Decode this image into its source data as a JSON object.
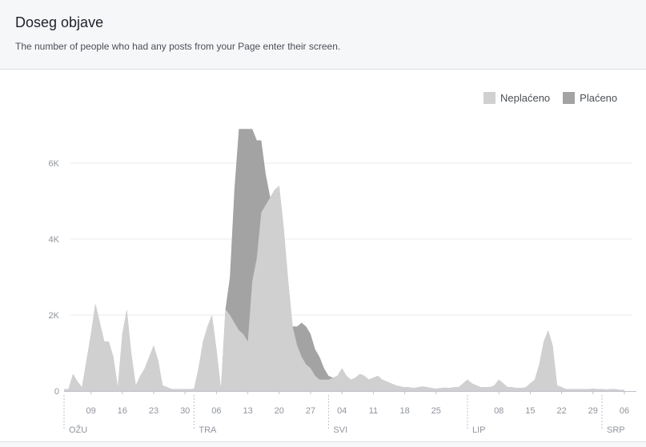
{
  "header": {
    "title": "Doseg objave",
    "subtitle": "The number of people who had any posts from your Page enter their screen."
  },
  "colors": {
    "unpaid": "#d0d0d0",
    "paid": "#a3a3a3",
    "grid": "#e9ebee",
    "axis_text": "#90949c"
  },
  "chart_data": {
    "type": "area",
    "stacked": true,
    "title": "Doseg objave",
    "xlabel": "",
    "ylabel": "",
    "ylim": [
      0,
      7000
    ],
    "grid": true,
    "legend": "top-right",
    "y_ticks": [
      {
        "value": 0,
        "label": "0"
      },
      {
        "value": 2000,
        "label": "2K"
      },
      {
        "value": 4000,
        "label": "4K"
      },
      {
        "value": 6000,
        "label": "6K"
      }
    ],
    "x_tick_labels": [
      {
        "index": 6,
        "label": "09"
      },
      {
        "index": 13,
        "label": "16"
      },
      {
        "index": 20,
        "label": "23"
      },
      {
        "index": 27,
        "label": "30"
      },
      {
        "index": 34,
        "label": "06"
      },
      {
        "index": 41,
        "label": "13"
      },
      {
        "index": 48,
        "label": "20"
      },
      {
        "index": 55,
        "label": "27"
      },
      {
        "index": 62,
        "label": "04"
      },
      {
        "index": 69,
        "label": "11"
      },
      {
        "index": 76,
        "label": "18"
      },
      {
        "index": 83,
        "label": "25"
      },
      {
        "index": 97,
        "label": "08"
      },
      {
        "index": 104,
        "label": "15"
      },
      {
        "index": 111,
        "label": "22"
      },
      {
        "index": 118,
        "label": "29"
      },
      {
        "index": 125,
        "label": "06"
      }
    ],
    "month_labels": [
      {
        "index": 0,
        "label": "OŽU"
      },
      {
        "index": 29,
        "label": "TRA"
      },
      {
        "index": 59,
        "label": "SVI"
      },
      {
        "index": 90,
        "label": "LIP"
      },
      {
        "index": 120,
        "label": "SRP"
      }
    ],
    "series": [
      {
        "name": "Neplaćeno",
        "values": [
          50,
          50,
          450,
          250,
          100,
          800,
          1500,
          2300,
          1800,
          1300,
          1300,
          900,
          100,
          1500,
          2150,
          1000,
          150,
          400,
          600,
          900,
          1200,
          800,
          150,
          100,
          50,
          50,
          50,
          50,
          50,
          60,
          600,
          1300,
          1700,
          2000,
          1100,
          50,
          2150,
          2000,
          1800,
          1600,
          1500,
          1300,
          2900,
          3500,
          4700,
          4900,
          5100,
          5300,
          5400,
          4300,
          2900,
          1700,
          1200,
          900,
          700,
          600,
          400,
          300,
          300,
          300,
          350,
          400,
          600,
          400,
          300,
          350,
          450,
          400,
          300,
          350,
          400,
          300,
          250,
          200,
          150,
          120,
          100,
          100,
          80,
          100,
          120,
          100,
          80,
          60,
          80,
          90,
          80,
          100,
          100,
          200,
          300,
          200,
          150,
          100,
          100,
          100,
          150,
          300,
          200,
          100,
          100,
          80,
          80,
          100,
          200,
          300,
          700,
          1300,
          1600,
          1200,
          150,
          100,
          50,
          50,
          50,
          50,
          50,
          50,
          60,
          50,
          50,
          40,
          50,
          50,
          30,
          30
        ]
      },
      {
        "name": "Plaćeno",
        "values": [
          0,
          0,
          0,
          0,
          0,
          0,
          0,
          0,
          0,
          0,
          0,
          0,
          0,
          0,
          0,
          0,
          0,
          0,
          0,
          0,
          0,
          0,
          0,
          0,
          0,
          0,
          0,
          0,
          0,
          0,
          0,
          0,
          0,
          0,
          0,
          0,
          0,
          1000,
          3500,
          5300,
          5400,
          5600,
          4000,
          3100,
          1900,
          800,
          0,
          0,
          0,
          0,
          0,
          0,
          500,
          900,
          1000,
          900,
          700,
          600,
          300,
          100,
          0,
          0,
          0,
          0,
          0,
          0,
          0,
          0,
          0,
          0,
          0,
          0,
          0,
          0,
          0,
          0,
          0,
          0,
          0,
          0,
          0,
          0,
          0,
          0,
          0,
          0,
          0,
          0,
          0,
          0,
          0,
          0,
          0,
          0,
          0,
          0,
          0,
          0,
          0,
          0,
          0,
          0,
          0,
          0,
          0,
          0,
          0,
          0,
          0,
          0,
          0,
          0,
          0,
          0,
          0,
          0,
          0,
          0,
          0,
          0,
          0,
          0,
          0,
          0,
          0,
          0,
          0
        ]
      }
    ]
  }
}
